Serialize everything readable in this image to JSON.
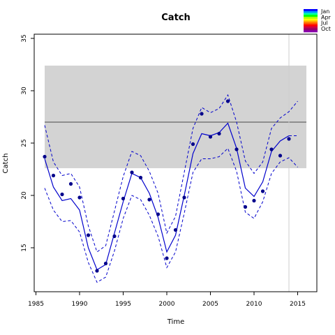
{
  "chart_data": {
    "type": "line",
    "title": "Catch",
    "xlabel": "Time",
    "ylabel": "Catch",
    "xlim": [
      1984.8,
      2017.2
    ],
    "ylim": [
      10.8,
      35.4
    ],
    "x_ticks": [
      1985,
      1990,
      1995,
      2000,
      2005,
      2010,
      2015
    ],
    "y_ticks": [
      15,
      20,
      25,
      30,
      35
    ],
    "band": {
      "x_start": 1986,
      "x_end": 2016,
      "y_low": 22.6,
      "y_high": 32.4,
      "color": "#d3d3d3"
    },
    "mean_line": {
      "value": 27.0,
      "x_start": 1986,
      "x_end": 2016,
      "color": "#666666"
    },
    "vertical_line": {
      "x": 2014,
      "color": "#cccccc"
    },
    "x": [
      1986,
      1987,
      1988,
      1989,
      1990,
      1991,
      1992,
      1993,
      1994,
      1995,
      1996,
      1997,
      1998,
      1999,
      2000,
      2001,
      2002,
      2003,
      2004,
      2005,
      2006,
      2007,
      2008,
      2009,
      2010,
      2011,
      2012,
      2013,
      2014
    ],
    "observed": [
      23.7,
      21.9,
      20.1,
      21.1,
      19.8,
      16.2,
      12.8,
      13.5,
      16.1,
      19.7,
      22.2,
      21.7,
      19.6,
      18.2,
      14.0,
      16.7,
      19.8,
      24.9,
      27.8,
      25.6,
      25.9,
      29.0,
      24.4,
      18.9,
      19.5,
      20.4,
      24.4,
      23.8,
      25.4
    ],
    "fit": {
      "x": [
        1986,
        1987,
        1988,
        1989,
        1990,
        1991,
        1992,
        1993,
        1994,
        1995,
        1996,
        1997,
        1998,
        1999,
        2000,
        2001,
        2002,
        2003,
        2004,
        2005,
        2006,
        2007,
        2008,
        2009,
        2010,
        2011,
        2012,
        2013,
        2014
      ],
      "values": [
        23.5,
        20.8,
        19.5,
        19.7,
        18.6,
        15.0,
        12.9,
        13.4,
        16.4,
        19.4,
        22.1,
        21.7,
        20.2,
        17.9,
        14.6,
        16.2,
        20.0,
        24.0,
        25.9,
        25.7,
        26.0,
        26.9,
        24.5,
        20.7,
        19.9,
        21.3,
        24.2,
        25.2,
        25.7
      ]
    },
    "upper": {
      "x": [
        1986,
        1987,
        1988,
        1989,
        1990,
        1991,
        1992,
        1993,
        1994,
        1995,
        1996,
        1997,
        1998,
        1999,
        2000,
        2001,
        2002,
        2003,
        2004,
        2005,
        2006,
        2007,
        2008,
        2009,
        2010,
        2011,
        2012,
        2013,
        2014,
        2015
      ],
      "values": [
        26.7,
        23.2,
        21.9,
        22.1,
        20.8,
        17.1,
        14.6,
        15.2,
        18.5,
        21.8,
        24.2,
        23.8,
        22.3,
        20.2,
        16.4,
        18.0,
        22.2,
        26.4,
        28.4,
        27.9,
        28.3,
        29.6,
        27.0,
        23.3,
        22.1,
        23.2,
        26.4,
        27.4,
        28.0,
        29.0
      ]
    },
    "lower": {
      "x": [
        1986,
        1987,
        1988,
        1989,
        1990,
        1991,
        1992,
        1993,
        1994,
        1995,
        1996,
        1997,
        1998,
        1999,
        2000,
        2001,
        2002,
        2003,
        2004,
        2005,
        2006,
        2007,
        2008,
        2009,
        2010,
        2011,
        2012,
        2013,
        2014,
        2015
      ],
      "values": [
        20.7,
        18.6,
        17.5,
        17.6,
        16.5,
        13.6,
        11.7,
        12.2,
        14.7,
        17.8,
        20.0,
        19.6,
        18.1,
        16.1,
        13.1,
        14.6,
        18.3,
        22.2,
        23.5,
        23.5,
        23.7,
        24.5,
        22.3,
        18.4,
        17.8,
        19.4,
        22.1,
        23.2,
        23.6,
        22.7
      ]
    },
    "forecast": {
      "x": [
        2014,
        2015
      ],
      "values": [
        25.7,
        25.7
      ]
    },
    "line_color": "#0000cc",
    "point_color": "#00008b",
    "grid": false,
    "legend": {
      "placement": "top-right",
      "entries": [
        "Jan",
        "Apr",
        "Jul",
        "Oct"
      ],
      "colors": [
        "#0000ff",
        "#0090ff",
        "#00ffaa",
        "#00ff00",
        "#aaff00",
        "#ffff00",
        "#ffaa00",
        "#ff5500",
        "#ff0000",
        "#cc0044",
        "#990066",
        "#8800aa"
      ]
    }
  }
}
